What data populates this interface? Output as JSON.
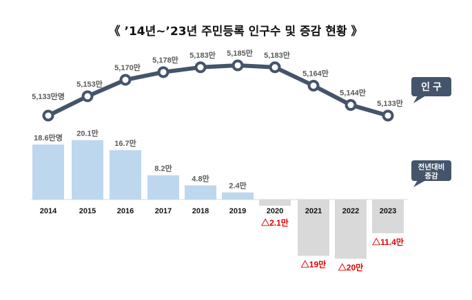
{
  "chart_data": [
    {
      "type": "line",
      "title": "《 ’14년~’23년 주민등록 인구수 및 증감 현황 》",
      "legend_label": "인 구",
      "categories": [
        "2014",
        "2015",
        "2016",
        "2017",
        "2018",
        "2019",
        "2020",
        "2021",
        "2022",
        "2023"
      ],
      "values": [
        5133,
        5153,
        5170,
        5178,
        5183,
        5185,
        5183,
        5164,
        5144,
        5133
      ],
      "data_labels": [
        "5,133만명",
        "5,153만",
        "5,170만",
        "5,178만",
        "5,183만",
        "5,185만",
        "5,183만",
        "5,164만",
        "5,144만",
        "5,133만"
      ],
      "unit": "만명",
      "color": "#44546a",
      "marker": "hollow-circle"
    },
    {
      "type": "bar",
      "legend_label": "전년대비 증감",
      "categories": [
        "2014",
        "2015",
        "2016",
        "2017",
        "2018",
        "2019",
        "2020",
        "2021",
        "2022",
        "2023"
      ],
      "values": [
        18.6,
        20.1,
        16.7,
        8.2,
        4.8,
        2.4,
        -2.1,
        -19,
        -20,
        -11.4
      ],
      "data_labels": [
        "18.6만명",
        "20.1만",
        "16.7만",
        "8.2만",
        "4.8만",
        "2.4만",
        "△2.1만",
        "△19만",
        "△20만",
        "△11.4만"
      ],
      "unit": "만명",
      "positive_color": "#bdd7ee",
      "negative_color": "#d9d9d9",
      "negative_label_color": "#e00000"
    }
  ]
}
